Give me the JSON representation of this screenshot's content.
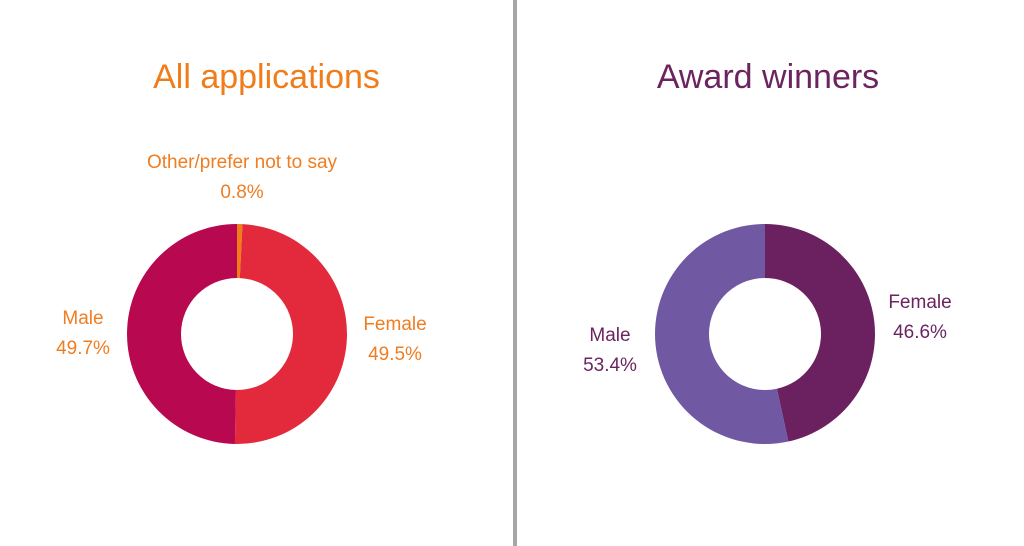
{
  "colors": {
    "left_title": "#f07c1a",
    "left_label": "#ef7d22",
    "right_title": "#6b2460",
    "right_label": "#6b2460"
  },
  "chart_data": [
    {
      "type": "pie",
      "title": "All applications",
      "categories": [
        "Other/prefer not to say",
        "Female",
        "Male"
      ],
      "values": [
        0.8,
        49.5,
        49.7
      ],
      "value_labels": [
        "0.8%",
        "49.5%",
        "49.7%"
      ],
      "colors": [
        "#f07c1a",
        "#e32a3d",
        "#b8084f"
      ]
    },
    {
      "type": "pie",
      "title": "Award winners",
      "categories": [
        "Female",
        "Male"
      ],
      "values": [
        46.6,
        53.4
      ],
      "value_labels": [
        "46.6%",
        "53.4%"
      ],
      "colors": [
        "#6b2160",
        "#7058a3"
      ]
    }
  ]
}
